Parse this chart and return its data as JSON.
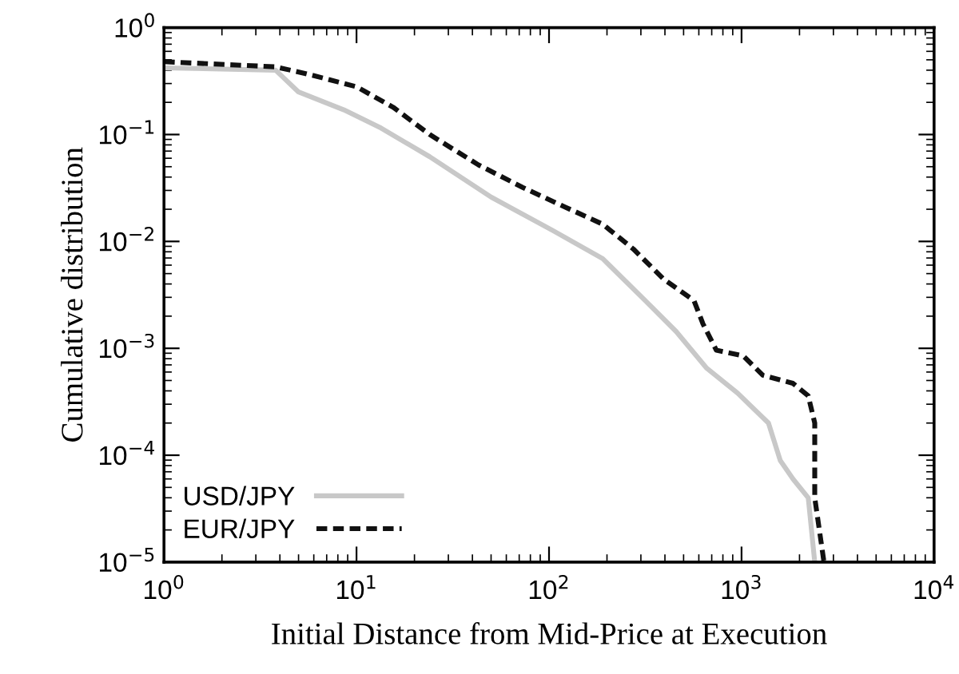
{
  "chart_data": {
    "type": "line",
    "xlabel": "Initial Distance from Mid-Price at Execution",
    "ylabel": "Cumulative distribution",
    "log": "xy",
    "xlim": [
      1,
      10000
    ],
    "ylim": [
      1e-05,
      1
    ],
    "xticks": [
      {
        "value": 1,
        "label": "10$^{0}$"
      },
      {
        "value": 10,
        "label": "10$^{1}$"
      },
      {
        "value": 100,
        "label": "10$^{2}$"
      },
      {
        "value": 1000,
        "label": "10$^{3}$"
      },
      {
        "value": 10000,
        "label": "10$^{4}$"
      }
    ],
    "yticks": [
      {
        "value": 1e-05,
        "label": "10$^{−5}$"
      },
      {
        "value": 0.0001,
        "label": "10$^{−4}$"
      },
      {
        "value": 0.001,
        "label": "10$^{−3}$"
      },
      {
        "value": 0.01,
        "label": "10$^{−2}$"
      },
      {
        "value": 0.1,
        "label": "10$^{−1}$"
      },
      {
        "value": 1,
        "label": "10$^{0}$"
      }
    ],
    "grid": false,
    "legend": "bottom left",
    "series": [
      {
        "name": "USD/JPY",
        "color": "#c8c8c8",
        "line_style": "solid",
        "x": [
          1,
          3.8,
          5,
          8.6,
          13.4,
          24,
          50,
          105,
          190,
          316,
          457,
          660,
          955,
          1380,
          1590,
          1850,
          2220,
          2400
        ],
        "values": [
          0.42,
          0.4,
          0.25,
          0.17,
          0.115,
          0.062,
          0.026,
          0.0126,
          0.0069,
          0.0028,
          0.00144,
          0.00065,
          0.00038,
          0.0002,
          8.9e-05,
          6e-05,
          4e-05,
          1e-05
        ]
      },
      {
        "name": "EUR/JPY",
        "color": "#111111",
        "line_style": "dashed",
        "x": [
          1,
          3.8,
          5.5,
          10,
          15.5,
          24,
          43,
          73,
          121,
          190,
          274,
          396,
          566,
          630,
          740,
          1020,
          1290,
          1850,
          2220,
          2400,
          2400,
          2680
        ],
        "values": [
          0.48,
          0.43,
          0.37,
          0.28,
          0.18,
          0.1,
          0.052,
          0.032,
          0.021,
          0.0145,
          0.0085,
          0.0044,
          0.0028,
          0.0017,
          0.00096,
          0.00085,
          0.00056,
          0.00047,
          0.00036,
          0.0002,
          4e-05,
          1e-05
        ]
      }
    ]
  }
}
